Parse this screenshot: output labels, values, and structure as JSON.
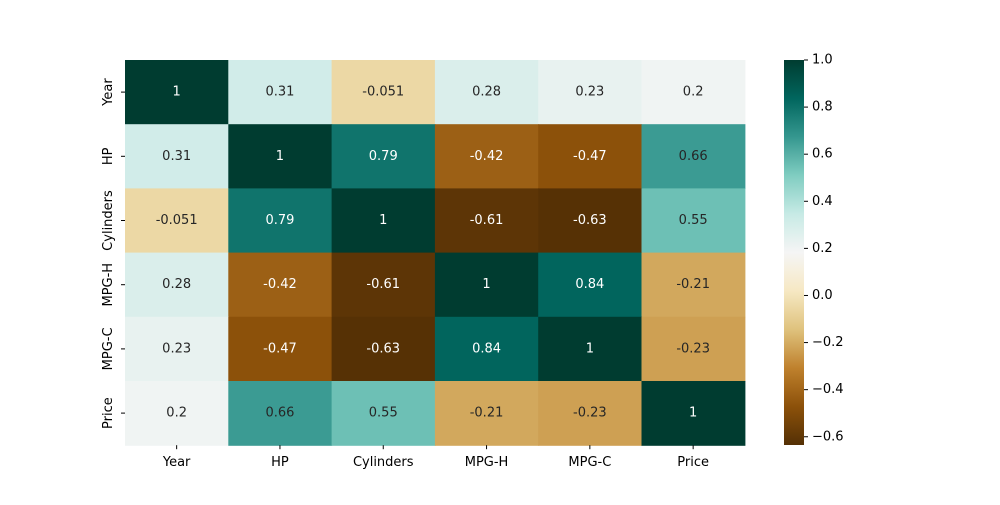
{
  "chart_data": {
    "type": "heatmap",
    "title": "",
    "xlabel": "",
    "ylabel": "",
    "x_categories": [
      "Year",
      "HP",
      "Cylinders",
      "MPG-H",
      "MPG-C",
      "Price"
    ],
    "y_categories": [
      "Year",
      "HP",
      "Cylinders",
      "MPG-H",
      "MPG-C",
      "Price"
    ],
    "values": [
      [
        1,
        0.31,
        -0.051,
        0.28,
        0.23,
        0.2
      ],
      [
        0.31,
        1,
        0.79,
        -0.42,
        -0.47,
        0.66
      ],
      [
        -0.051,
        0.79,
        1,
        -0.61,
        -0.63,
        0.55
      ],
      [
        0.28,
        -0.42,
        -0.61,
        1,
        0.84,
        -0.21
      ],
      [
        0.23,
        -0.47,
        -0.63,
        0.84,
        1,
        -0.23
      ],
      [
        0.2,
        0.66,
        0.55,
        -0.21,
        -0.23,
        1
      ]
    ],
    "annotations": [
      [
        "1",
        "0.31",
        "-0.051",
        "0.28",
        "0.23",
        "0.2"
      ],
      [
        "0.31",
        "1",
        "0.79",
        "-0.42",
        "-0.47",
        "0.66"
      ],
      [
        "-0.051",
        "0.79",
        "1",
        "-0.61",
        "-0.63",
        "0.55"
      ],
      [
        "0.28",
        "-0.42",
        "-0.61",
        "1",
        "0.84",
        "-0.21"
      ],
      [
        "0.23",
        "-0.47",
        "-0.63",
        "0.84",
        "1",
        "-0.23"
      ],
      [
        "0.2",
        "0.66",
        "0.55",
        "-0.21",
        "-0.23",
        "1"
      ]
    ],
    "colormap": "BrBG",
    "colorbar": {
      "vmin": -0.635,
      "vmax": 1.0,
      "ticks": [
        -0.6,
        -0.4,
        -0.2,
        0.0,
        0.2,
        0.4,
        0.6,
        0.8,
        1.0
      ],
      "tick_labels": [
        "−0.6",
        "−0.4",
        "−0.2",
        "0.0",
        "0.2",
        "0.4",
        "0.6",
        "0.8",
        "1.0"
      ],
      "placement": "right"
    },
    "grid": false,
    "colors": {
      "low": "#543005",
      "mid": "#f5f5f5",
      "high": "#003c30",
      "text_dark": "#262626",
      "text_light": "#ffffff"
    }
  }
}
